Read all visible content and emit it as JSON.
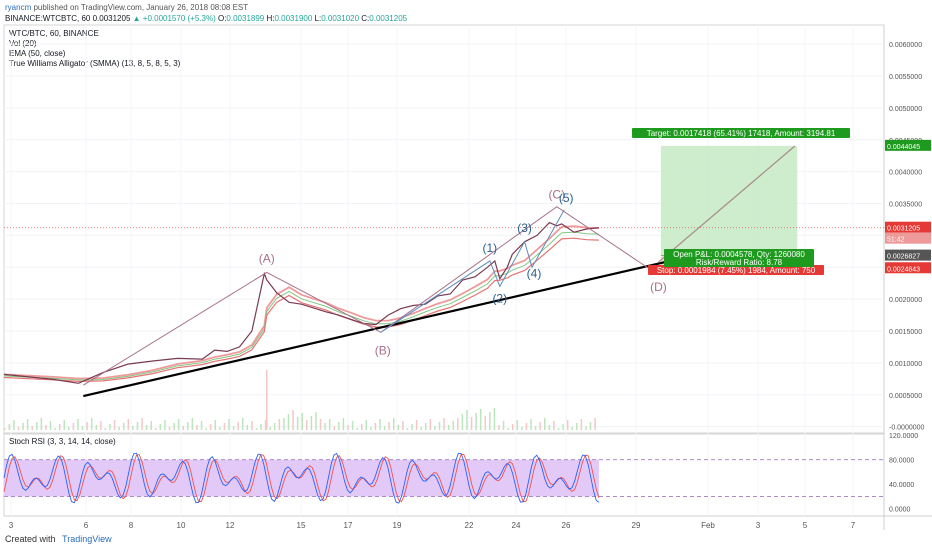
{
  "header": {
    "user": "ryancm",
    "published_text": "published on TradingView.com, January 26, 2018 08:08 EST",
    "symbol_line": "BINANCE:WTCBTC, 60",
    "last": "0.0031205",
    "change": "▲ +0.0001570 (+5.3%)",
    "o_label": "O:",
    "o": "0.0031899",
    "h_label": "H:",
    "h": "0.0031900",
    "l_label": "L:",
    "l": "0.0031020",
    "c_label": "C:",
    "c": "0.0031205"
  },
  "legend": [
    "WTC/BTC, 60, BINANCE",
    "Vol (20)",
    "EMA (50, close)",
    "True Williams Alligator (SMMA) (13, 8, 5, 8, 5, 3)"
  ],
  "rsi_legend": "Stoch RSI (3, 3, 14, 14, close)",
  "footer": {
    "created_with": "Created with",
    "brand": "TradingView"
  },
  "colors": {
    "price_line": "#7a3a52",
    "wave_abc": "#a86f8a",
    "wave_impulse": "#5c8fbf",
    "trendline": "#000000",
    "target_zone": "#c8ebc8",
    "stop_zone": "#f8d0d0",
    "rsi_band": "#e2c9f7",
    "rsi_k": "#2962ff",
    "rsi_d": "#ef5350",
    "green_label": "#1e9b1e",
    "red_label": "#e53935",
    "gray_label": "#555555"
  },
  "chart_data": [
    {
      "type": "line",
      "title": "WTC/BTC, 60, BINANCE",
      "x_ticks": [
        "3",
        "6",
        "8",
        "10",
        "12",
        "15",
        "17",
        "19",
        "22",
        "24",
        "26",
        "29",
        "Feb",
        "3",
        "5",
        "7"
      ],
      "y_ticks": [
        "0.0060000",
        "0.0055000",
        "0.0050000",
        "0.0045000",
        "0.0040000",
        "0.0035000",
        "0.0030000",
        "0.0025000",
        "0.0020000",
        "0.0015000",
        "0.0010000",
        "0.0005000",
        "-0.0000000"
      ],
      "ylim": [
        -0.0001,
        0.0063
      ],
      "price": {
        "x": [
          3.0,
          4.0,
          5.0,
          6.0,
          7.0,
          8.0,
          9.0,
          10.0,
          11.0,
          11.5,
          12.0,
          12.5,
          13.0,
          13.5,
          13.6,
          14.0,
          14.5,
          15.0,
          16.0,
          16.5,
          17.0,
          17.5,
          18.0,
          18.5,
          19.0,
          19.5,
          20.0,
          20.5,
          21.0,
          21.5,
          22.0,
          22.5,
          22.8,
          23.0,
          23.3,
          23.5,
          24.0,
          24.5,
          25.0,
          25.3,
          25.5,
          26.0,
          26.5,
          27.0
        ],
        "values": [
          0.00082,
          0.00078,
          0.00074,
          0.00068,
          0.00085,
          0.00098,
          0.00103,
          0.00107,
          0.00106,
          0.0012,
          0.00118,
          0.00125,
          0.0015,
          0.0024,
          0.0023,
          0.0021,
          0.00195,
          0.00192,
          0.0018,
          0.00175,
          0.00168,
          0.00162,
          0.0016,
          0.00175,
          0.00185,
          0.0019,
          0.00192,
          0.00205,
          0.00208,
          0.0023,
          0.00235,
          0.0025,
          0.0026,
          0.00232,
          0.0025,
          0.0027,
          0.0029,
          0.003,
          0.0032,
          0.00315,
          0.00318,
          0.00305,
          0.0031,
          0.0031205
        ]
      },
      "wave_points": [
        {
          "label": "(A)",
          "x": 13.6,
          "y": 0.00242
        },
        {
          "label": "(B)",
          "x": 18.2,
          "y": 0.00148
        },
        {
          "label": "(C)",
          "x": 25.3,
          "y": 0.00345
        },
        {
          "label": "(D)",
          "x": 29.4,
          "y": 0.00238
        }
      ],
      "impulse_points": [
        {
          "label": "(1)",
          "x": 22.6,
          "y": 0.0026
        },
        {
          "label": "(2)",
          "x": 23.0,
          "y": 0.0022
        },
        {
          "label": "(3)",
          "x": 24.0,
          "y": 0.0029
        },
        {
          "label": "(4)",
          "x": 24.3,
          "y": 0.0025
        },
        {
          "label": "(5)",
          "x": 25.6,
          "y": 0.0034
        }
      ],
      "trendline": {
        "x": [
          6.2,
          31.0
        ],
        "y": [
          0.00048,
          0.0027
        ]
      },
      "projection": {
        "x": [
          29.4,
          34.9
        ],
        "y": [
          0.00258,
          0.0044
        ]
      },
      "position": {
        "entry": 0.0026827,
        "target": 0.0044045,
        "stop": 0.0024843,
        "x_range": [
          29.5,
          35.0
        ],
        "target_label": "Target: 0.0017418 (65.41%) 17418, Amount: 3194.81",
        "open_label": "Open P&L: 0.0004578, Qty: 1260080",
        "rr_label": "Risk/Reward Ratio: 8.78",
        "stop_label": "Stop: 0.0001984 (7.45%) 1984, Amount: 750"
      },
      "price_labels": {
        "target": "0.0044045",
        "current": "0.0031205",
        "countdown": "51:42",
        "entry": "0.0026827",
        "stop": "0.0024843"
      }
    },
    {
      "type": "line",
      "title": "Stoch RSI (3, 3, 14, 14, close)",
      "y_ticks": [
        "120.0000",
        "80.0000",
        "40.0000",
        "0.0000"
      ],
      "ylim": [
        -12,
        122
      ],
      "band": [
        20,
        80
      ]
    }
  ]
}
